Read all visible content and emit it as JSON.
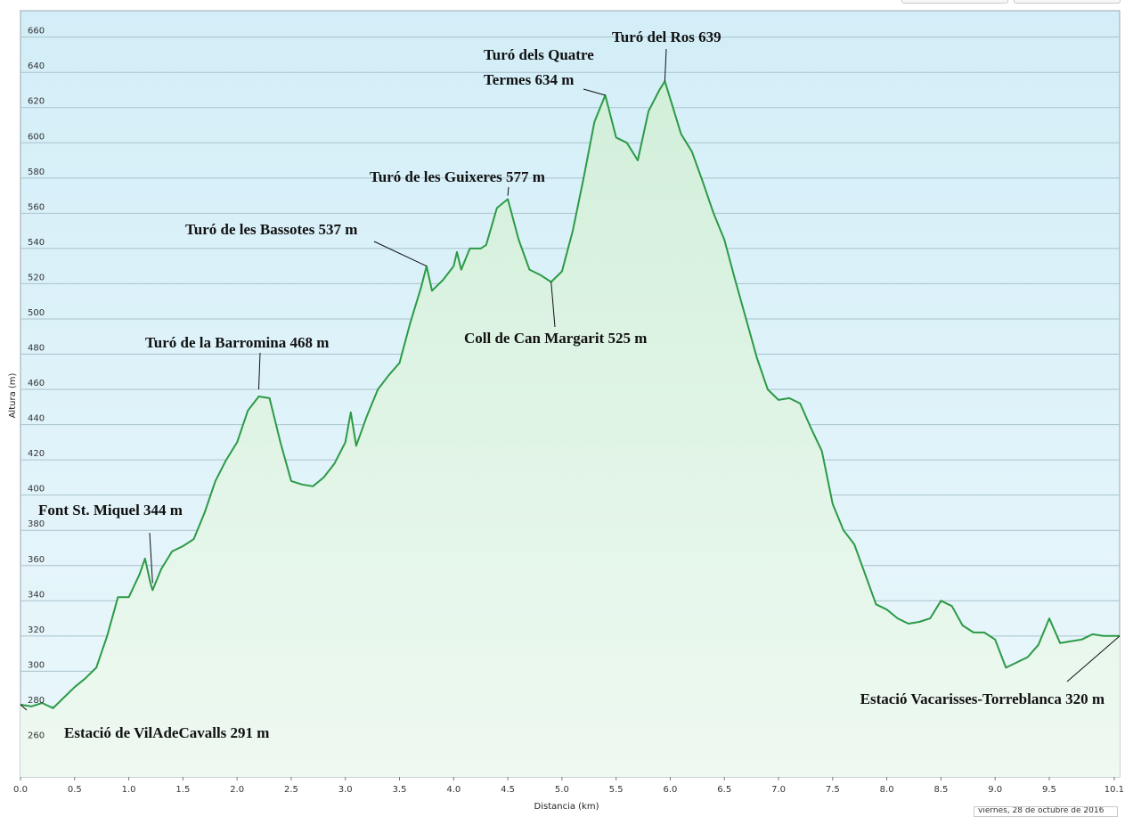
{
  "chart_data": {
    "type": "area",
    "title": "",
    "xlabel": "Distancia  (km)",
    "ylabel": "Altura (m)",
    "xlim": [
      0,
      10.15
    ],
    "ylim": [
      240,
      675
    ],
    "xticks": [
      "0.0",
      "0.5",
      "1.0",
      "1.5",
      "2.0",
      "2.5",
      "3.0",
      "3.5",
      "4.0",
      "4.5",
      "5.0",
      "5.5",
      "6.0",
      "6.5",
      "7.0",
      "7.5",
      "8.0",
      "8.5",
      "9.0",
      "9.5",
      "10.1"
    ],
    "yticks": [
      "260",
      "280",
      "300",
      "320",
      "340",
      "360",
      "380",
      "400",
      "420",
      "440",
      "460",
      "480",
      "500",
      "520",
      "540",
      "560",
      "580",
      "600",
      "620",
      "640",
      "660"
    ],
    "grid": true,
    "series": [
      {
        "points": [
          [
            0.0,
            281
          ],
          [
            0.1,
            280
          ],
          [
            0.2,
            282
          ],
          [
            0.3,
            279
          ],
          [
            0.4,
            285
          ],
          [
            0.5,
            291
          ],
          [
            0.6,
            296
          ],
          [
            0.7,
            302
          ],
          [
            0.8,
            320
          ],
          [
            0.9,
            342
          ],
          [
            1.0,
            342
          ],
          [
            1.1,
            355
          ],
          [
            1.15,
            364
          ],
          [
            1.2,
            350
          ],
          [
            1.22,
            346
          ],
          [
            1.3,
            358
          ],
          [
            1.4,
            368
          ],
          [
            1.5,
            371
          ],
          [
            1.6,
            375
          ],
          [
            1.7,
            390
          ],
          [
            1.8,
            408
          ],
          [
            1.9,
            420
          ],
          [
            2.0,
            430
          ],
          [
            2.1,
            448
          ],
          [
            2.2,
            456
          ],
          [
            2.3,
            455
          ],
          [
            2.4,
            430
          ],
          [
            2.5,
            408
          ],
          [
            2.6,
            406
          ],
          [
            2.7,
            405
          ],
          [
            2.8,
            410
          ],
          [
            2.9,
            418
          ],
          [
            3.0,
            430
          ],
          [
            3.05,
            447
          ],
          [
            3.1,
            428
          ],
          [
            3.2,
            445
          ],
          [
            3.3,
            460
          ],
          [
            3.4,
            468
          ],
          [
            3.5,
            475
          ],
          [
            3.6,
            498
          ],
          [
            3.7,
            518
          ],
          [
            3.75,
            530
          ],
          [
            3.8,
            516
          ],
          [
            3.9,
            522
          ],
          [
            4.0,
            530
          ],
          [
            4.03,
            538
          ],
          [
            4.07,
            528
          ],
          [
            4.15,
            540
          ],
          [
            4.25,
            540
          ],
          [
            4.3,
            542
          ],
          [
            4.4,
            563
          ],
          [
            4.5,
            568
          ],
          [
            4.6,
            545
          ],
          [
            4.7,
            528
          ],
          [
            4.8,
            525
          ],
          [
            4.9,
            521
          ],
          [
            5.0,
            527
          ],
          [
            5.1,
            550
          ],
          [
            5.2,
            580
          ],
          [
            5.3,
            612
          ],
          [
            5.4,
            627
          ],
          [
            5.5,
            603
          ],
          [
            5.6,
            600
          ],
          [
            5.7,
            590
          ],
          [
            5.8,
            618
          ],
          [
            5.9,
            630
          ],
          [
            5.95,
            635
          ],
          [
            6.0,
            625
          ],
          [
            6.1,
            605
          ],
          [
            6.2,
            595
          ],
          [
            6.3,
            578
          ],
          [
            6.4,
            560
          ],
          [
            6.5,
            545
          ],
          [
            6.6,
            522
          ],
          [
            6.7,
            500
          ],
          [
            6.8,
            478
          ],
          [
            6.9,
            460
          ],
          [
            7.0,
            454
          ],
          [
            7.1,
            455
          ],
          [
            7.2,
            452
          ],
          [
            7.3,
            438
          ],
          [
            7.4,
            425
          ],
          [
            7.5,
            395
          ],
          [
            7.6,
            380
          ],
          [
            7.7,
            372
          ],
          [
            7.8,
            355
          ],
          [
            7.9,
            338
          ],
          [
            8.0,
            335
          ],
          [
            8.1,
            330
          ],
          [
            8.2,
            327
          ],
          [
            8.3,
            328
          ],
          [
            8.4,
            330
          ],
          [
            8.5,
            340
          ],
          [
            8.6,
            337
          ],
          [
            8.7,
            326
          ],
          [
            8.8,
            322
          ],
          [
            8.9,
            322
          ],
          [
            9.0,
            318
          ],
          [
            9.1,
            302
          ],
          [
            9.2,
            305
          ],
          [
            9.3,
            308
          ],
          [
            9.4,
            315
          ],
          [
            9.5,
            330
          ],
          [
            9.6,
            316
          ],
          [
            9.7,
            317
          ],
          [
            9.8,
            318
          ],
          [
            9.9,
            321
          ],
          [
            10.0,
            320
          ],
          [
            10.15,
            320
          ]
        ]
      }
    ],
    "annotations": [
      {
        "label": "Estació de VilAdeCavalls 291 m",
        "x": 0.0,
        "y": 281
      },
      {
        "label": "Font St. Miquel 344 m",
        "x": 1.22,
        "y": 350
      },
      {
        "label": "Turó de la Barromina 468 m",
        "x": 2.2,
        "y": 460
      },
      {
        "label": "Turó de les Bassotes 537 m",
        "x": 3.75,
        "y": 530
      },
      {
        "label": "Turó de les Guixeres 577 m",
        "x": 4.5,
        "y": 570
      },
      {
        "label": "Coll de Can Margarit 525 m",
        "x": 4.9,
        "y": 521
      },
      {
        "label": "Turó dels Quatre",
        "x": 5.4,
        "y": 627
      },
      {
        "label": "Termes 634 m",
        "x": 5.4,
        "y": 627
      },
      {
        "label": "Turó del Ros 639",
        "x": 5.95,
        "y": 635
      },
      {
        "label": "Estació Vacarisses-Torreblanca 320 m",
        "x": 10.15,
        "y": 320
      }
    ],
    "footer": "viernes, 28 de octubre de 2016"
  }
}
